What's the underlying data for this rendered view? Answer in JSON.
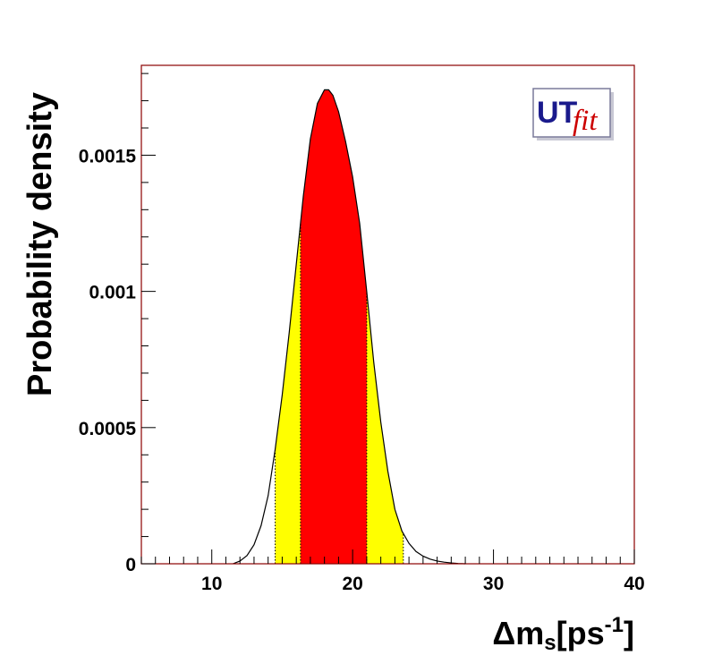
{
  "chart_data": {
    "type": "area",
    "xlabel": {
      "prefix": "Δm",
      "sub": "s",
      "mid": "[ps",
      "sup": "-1",
      "suffix": "]"
    },
    "ylabel": "Probability density",
    "xlim": [
      5,
      40
    ],
    "ylim": [
      0,
      0.00183
    ],
    "x_ticks": [
      10,
      20,
      30,
      40
    ],
    "x_tick_labels": [
      "10",
      "20",
      "30",
      "40"
    ],
    "y_ticks": [
      0,
      0.0005,
      0.001,
      0.0015
    ],
    "y_tick_labels": [
      "0",
      "0.0005",
      "0.001",
      "0.0015"
    ],
    "x_minor_step": 1,
    "y_minor_step": 0.0001,
    "grid": false,
    "curve": {
      "x": [
        11.5,
        12,
        12.5,
        13,
        13.5,
        14,
        14.5,
        15,
        15.5,
        16,
        16.5,
        17,
        17.5,
        18,
        18.3,
        18.6,
        19,
        19.5,
        20,
        20.5,
        21,
        21.5,
        22,
        22.5,
        23,
        23.5,
        24,
        24.5,
        25,
        25.5,
        26,
        26.5,
        27,
        27.5,
        28
      ],
      "y": [
        0.0,
        1e-05,
        3e-05,
        7e-05,
        0.00014,
        0.00025,
        0.00042,
        0.00062,
        0.00085,
        0.0011,
        0.00135,
        0.00156,
        0.00169,
        0.00174,
        0.00174,
        0.00172,
        0.00166,
        0.00155,
        0.00142,
        0.00125,
        0.001,
        0.00074,
        0.00052,
        0.00034,
        0.0002,
        0.00012,
        7.5e-05,
        4.5e-05,
        2.8e-05,
        1.7e-05,
        1e-05,
        6e-06,
        3e-06,
        1e-06,
        0.0
      ],
      "line_color": "#000000"
    },
    "intervals": [
      {
        "range": [
          14.5,
          23.6
        ],
        "color": "#ffff00"
      },
      {
        "range": [
          16.3,
          21.0
        ],
        "color": "#ff0000"
      }
    ],
    "frame_color": "#8b0000"
  },
  "logo": {
    "text_a": "UT",
    "text_b": "fit",
    "color_a": "#1a1a8c",
    "color_b": "#cc0000"
  }
}
